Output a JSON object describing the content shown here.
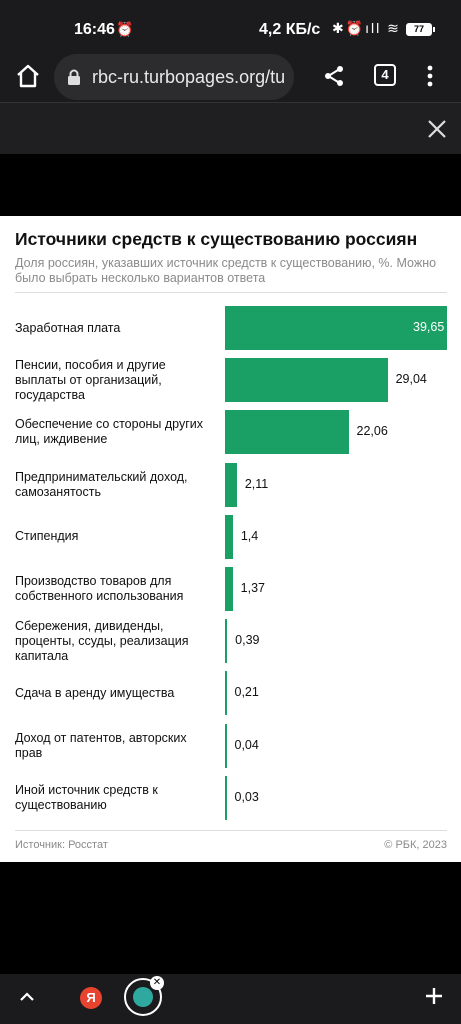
{
  "status_bar": {
    "time": "16:46",
    "alarm_icon": "⏰",
    "net_speed": "4,2 КБ/с",
    "system_icons": "✱⏰ıll ≋",
    "battery": "77"
  },
  "browser": {
    "url": "rbc-ru.turbopages.org/tu",
    "tab_count": "4"
  },
  "chart_data": {
    "type": "bar",
    "orientation": "horizontal",
    "title": "Источники средств к существованию россиян",
    "subtitle": "Доля россиян, указавших источник средств к существованию, %. Можно было выбрать несколько вариантов ответа",
    "categories": [
      "Заработная плата",
      "Пенсии, пособия и другие выплаты от организаций, государства",
      "Обеспечение со стороны других лиц, иждивение",
      "Предпринимательский доход, самозанятость",
      "Стипендия",
      "Производство товаров для собственного использования",
      "Сбережения, дивиденды, проценты, ссуды, реализация капитала",
      "Сдача в аренду имущества",
      "Доход от патентов, авторских прав",
      "Иной источник средств к существованию"
    ],
    "values": [
      39.65,
      29.04,
      22.06,
      2.11,
      1.4,
      1.37,
      0.39,
      0.21,
      0.04,
      0.03
    ],
    "value_labels": [
      "39,65",
      "29,04",
      "22,06",
      "2,11",
      "1,4",
      "1,37",
      "0,39",
      "0,21",
      "0,04",
      "0,03"
    ],
    "xlim": [
      0,
      39.65
    ],
    "grid": false,
    "legend": "none",
    "bar_color": "#1aa064",
    "source": "Источник: Росстат",
    "credit": "© РБК, 2023"
  }
}
